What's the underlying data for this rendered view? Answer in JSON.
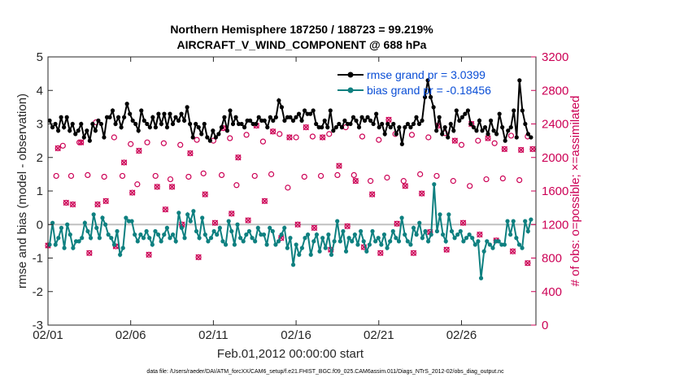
{
  "chart_data": {
    "type": "line",
    "title_line1": "Northern Hemisphere 187250 / 188723 = 99.219%",
    "title_line2": "AIRCRAFT_V_WIND_COMPONENT @ 688 hPa",
    "xlabel": "Feb.01,2012 00:00:00 start",
    "ylabel_left": "rmse and bias (model - observation)",
    "ylabel_right": "# of obs: o=possible; ×=assimilated",
    "footer": "data file: /Users/raeder/DAI/ATM_forcXX/CAM6_setup/f.e21.FHIST_BGC.f09_025.CAM6assim.011/Diags_NTrS_2012-02/obs_diag_output.nc",
    "xlim_days": [
      0,
      29.5
    ],
    "ylim_left": [
      -3,
      5
    ],
    "ylim_right": [
      0,
      3200
    ],
    "left_ticks": [
      "-3",
      "-2",
      "-1",
      "0",
      "1",
      "2",
      "3",
      "4",
      "5"
    ],
    "right_ticks": [
      "0",
      "400",
      "800",
      "1200",
      "1600",
      "2000",
      "2400",
      "2800",
      "3200"
    ],
    "x_tick_days": [
      0,
      5,
      10,
      15,
      20,
      25
    ],
    "x_tick_labels": [
      "02/01",
      "02/06",
      "02/11",
      "02/16",
      "02/21",
      "02/26"
    ],
    "colors": {
      "rmse": "#000000",
      "bias": "#0e8080",
      "obs": "#cc0055",
      "legend_text": "#0a4ed6",
      "zero_line": "#c0c0c0"
    },
    "series": [
      {
        "name": "rmse",
        "legend": "rmse grand pr = 3.0399",
        "axis": "left",
        "values": [
          3.1,
          2.9,
          3.0,
          2.8,
          3.2,
          2.9,
          3.2,
          2.8,
          3.0,
          2.7,
          2.8,
          3.0,
          2.6,
          2.8,
          2.5,
          3.0,
          2.8,
          3.1,
          3.0,
          2.6,
          3.2,
          3.2,
          3.4,
          3.0,
          3.2,
          2.9,
          3.2,
          3.6,
          3.3,
          3.1,
          3.0,
          2.8,
          3.4,
          3.1,
          3.0,
          2.9,
          3.2,
          2.9,
          3.3,
          3.0,
          3.3,
          2.9,
          3.3,
          3.0,
          3.2,
          3.1,
          3.3,
          3.1,
          3.5,
          3.0,
          2.6,
          3.0,
          2.9,
          2.7,
          3.0,
          2.6,
          2.5,
          2.8,
          2.6,
          2.7,
          2.9,
          3.2,
          2.8,
          3.4,
          3.0,
          3.2,
          3.0,
          3.0,
          2.9,
          3.1,
          3.1,
          3.0,
          3.0,
          3.2,
          3.1,
          3.1,
          2.9,
          3.2,
          3.1,
          3.2,
          3.7,
          3.5,
          3.1,
          3.2,
          3.2,
          3.1,
          3.2,
          3.3,
          3.1,
          3.4,
          3.3,
          3.3,
          3.4,
          3.0,
          2.9,
          2.9,
          3.1,
          2.9,
          3.4,
          2.8,
          2.9,
          3.0,
          2.9,
          3.1,
          3.0,
          3.0,
          3.2,
          3.1,
          2.9,
          3.2,
          3.1,
          3.2,
          3.1,
          3.0,
          3.3,
          2.9,
          3.0,
          2.7,
          3.0,
          2.9,
          3.0,
          2.7,
          2.9,
          2.4,
          2.9,
          3.0,
          2.9,
          3.0,
          3.2,
          3.0,
          3.1,
          3.8,
          4.3,
          3.8,
          3.5,
          2.8,
          3.2,
          2.7,
          2.9,
          2.6,
          3.0,
          2.8,
          3.4,
          3.1,
          3.2,
          3.3,
          3.4,
          3.0,
          2.9,
          2.8,
          3.1,
          2.8,
          2.9,
          2.7,
          3.1,
          2.8,
          2.7,
          3.3,
          2.9,
          2.5,
          2.8,
          2.9,
          3.4,
          2.6,
          4.3,
          3.4,
          3.0,
          2.7,
          2.6
        ]
      },
      {
        "name": "bias",
        "legend": "bias grand pr = -0.18456",
        "axis": "left",
        "values": [
          -0.6,
          0.05,
          -0.6,
          -0.4,
          -0.1,
          -0.7,
          0.0,
          -0.3,
          -0.7,
          -0.5,
          -0.5,
          -0.4,
          0.05,
          -0.2,
          -0.4,
          0.3,
          -0.1,
          -0.4,
          0.2,
          0.0,
          -0.3,
          -0.4,
          -0.6,
          -0.2,
          -0.9,
          -0.7,
          0.2,
          0.1,
          0.1,
          -0.3,
          -0.5,
          -0.3,
          -0.4,
          -0.2,
          -0.4,
          -0.6,
          -0.2,
          -0.3,
          -0.5,
          -0.3,
          -0.1,
          -0.4,
          -0.3,
          -0.5,
          0.35,
          -0.1,
          -0.4,
          0.3,
          0.1,
          0.4,
          -0.2,
          -0.4,
          0.2,
          -0.3,
          -0.5,
          -0.4,
          -0.2,
          -0.3,
          -0.1,
          -0.5,
          -0.6,
          0.1,
          -0.2,
          -0.6,
          0.0,
          -0.4,
          -0.5,
          -0.3,
          -0.2,
          -0.4,
          -0.5,
          -0.1,
          -0.3,
          -0.3,
          -0.6,
          -0.1,
          -0.2,
          -0.6,
          -0.5,
          -0.3,
          -0.1,
          -0.7,
          -0.4,
          -1.2,
          -0.6,
          -0.9,
          -0.7,
          -0.4,
          -0.3,
          -0.9,
          -0.5,
          -0.3,
          -0.8,
          -0.4,
          -0.7,
          -0.3,
          -0.9,
          -0.5,
          0.1,
          -0.5,
          -0.2,
          -0.8,
          -0.4,
          -0.5,
          -0.3,
          -0.6,
          -0.2,
          -0.5,
          -0.8,
          -0.6,
          -0.2,
          -0.5,
          -0.4,
          -0.6,
          -0.3,
          -0.7,
          -0.5,
          -0.2,
          -0.4,
          -0.5,
          0.2,
          -0.3,
          -0.5,
          -0.6,
          -0.1,
          -0.3,
          0.05,
          -0.4,
          -0.2,
          -0.5,
          -0.3,
          1.2,
          -0.2,
          0.3,
          -0.3,
          -0.5,
          0.3,
          -0.2,
          -0.4,
          -0.3,
          -0.2,
          -0.5,
          -0.4,
          -0.3,
          -0.4,
          -0.6,
          -0.5,
          -1.6,
          -0.8,
          -0.5,
          -0.6,
          -0.7,
          -0.5,
          -0.5,
          -0.6,
          -0.6,
          0.1,
          -0.3,
          0.1,
          -0.4,
          -0.6,
          -0.7,
          0.1,
          -0.2,
          0.15
        ]
      }
    ],
    "obs_counts": {
      "axis": "right",
      "possible_x": [
        0.5,
        0.9,
        1.4,
        1.9,
        2.4,
        2.9,
        3.4,
        4.0,
        4.5,
        5.0,
        5.4,
        6.0,
        6.5,
        7.0,
        7.4,
        8.0,
        8.5,
        9.0,
        9.4,
        10.0,
        10.5,
        11.0,
        11.4,
        12.0,
        12.5,
        13.0,
        13.5,
        14.0,
        14.5,
        15.0,
        15.5,
        16.0,
        16.5,
        17.0,
        17.5,
        18.0,
        18.5,
        19.0,
        19.5,
        20.0,
        20.5,
        21.0,
        21.5,
        22.0,
        22.5,
        23.0,
        23.5,
        24.0,
        24.5,
        25.0,
        25.5,
        26.0,
        26.5,
        27.0,
        27.5,
        28.0,
        28.5,
        29.0
      ],
      "possible_y": [
        1780,
        2140,
        1780,
        2180,
        1790,
        2420,
        1770,
        2240,
        1780,
        2160,
        1680,
        2180,
        1780,
        2170,
        1740,
        2150,
        1770,
        2210,
        1810,
        2200,
        1790,
        2230,
        1670,
        2270,
        1780,
        2190,
        1800,
        2280,
        1640,
        2240,
        1770,
        2250,
        1780,
        2280,
        1790,
        2360,
        1790,
        2250,
        1720,
        2210,
        1760,
        2280,
        1720,
        2270,
        1800,
        2240,
        1780,
        2290,
        1720,
        2150,
        1660,
        2200,
        1740,
        2170,
        1750,
        2260,
        1730,
        2250
      ],
      "assim_x": [
        0.0,
        0.6,
        1.1,
        1.5,
        2.0,
        2.5,
        3.0,
        3.5,
        4.1,
        4.6,
        5.1,
        5.5,
        6.1,
        6.6,
        7.1,
        7.5,
        8.1,
        8.6,
        9.1,
        9.5,
        10.1,
        10.6,
        11.1,
        11.5,
        12.1,
        12.6,
        13.1,
        13.6,
        14.1,
        14.6,
        15.1,
        15.6,
        16.1,
        16.6,
        17.1,
        17.6,
        18.1,
        18.6,
        19.1,
        19.6,
        20.1,
        20.6,
        21.1,
        21.6,
        22.1,
        22.6,
        23.1,
        23.6,
        24.1,
        24.6,
        25.1,
        25.6,
        26.1,
        26.6,
        27.1,
        27.6,
        28.1,
        28.6,
        29.0,
        29.3
      ],
      "assim_y": [
        950,
        2110,
        1460,
        1440,
        2180,
        860,
        1440,
        1480,
        940,
        1940,
        1580,
        2080,
        840,
        1650,
        1380,
        1650,
        1200,
        2050,
        810,
        1560,
        1220,
        2350,
        1330,
        2000,
        1250,
        2380,
        1480,
        2310,
        1040,
        2240,
        1200,
        2360,
        1160,
        2240,
        900,
        1900,
        1180,
        1720,
        930,
        1560,
        860,
        2450,
        1210,
        1660,
        860,
        1570,
        1110,
        2380,
        900,
        2200,
        1220,
        2400,
        1080,
        2230,
        1010,
        2100,
        880,
        2090,
        740,
        2100
      ]
    }
  }
}
